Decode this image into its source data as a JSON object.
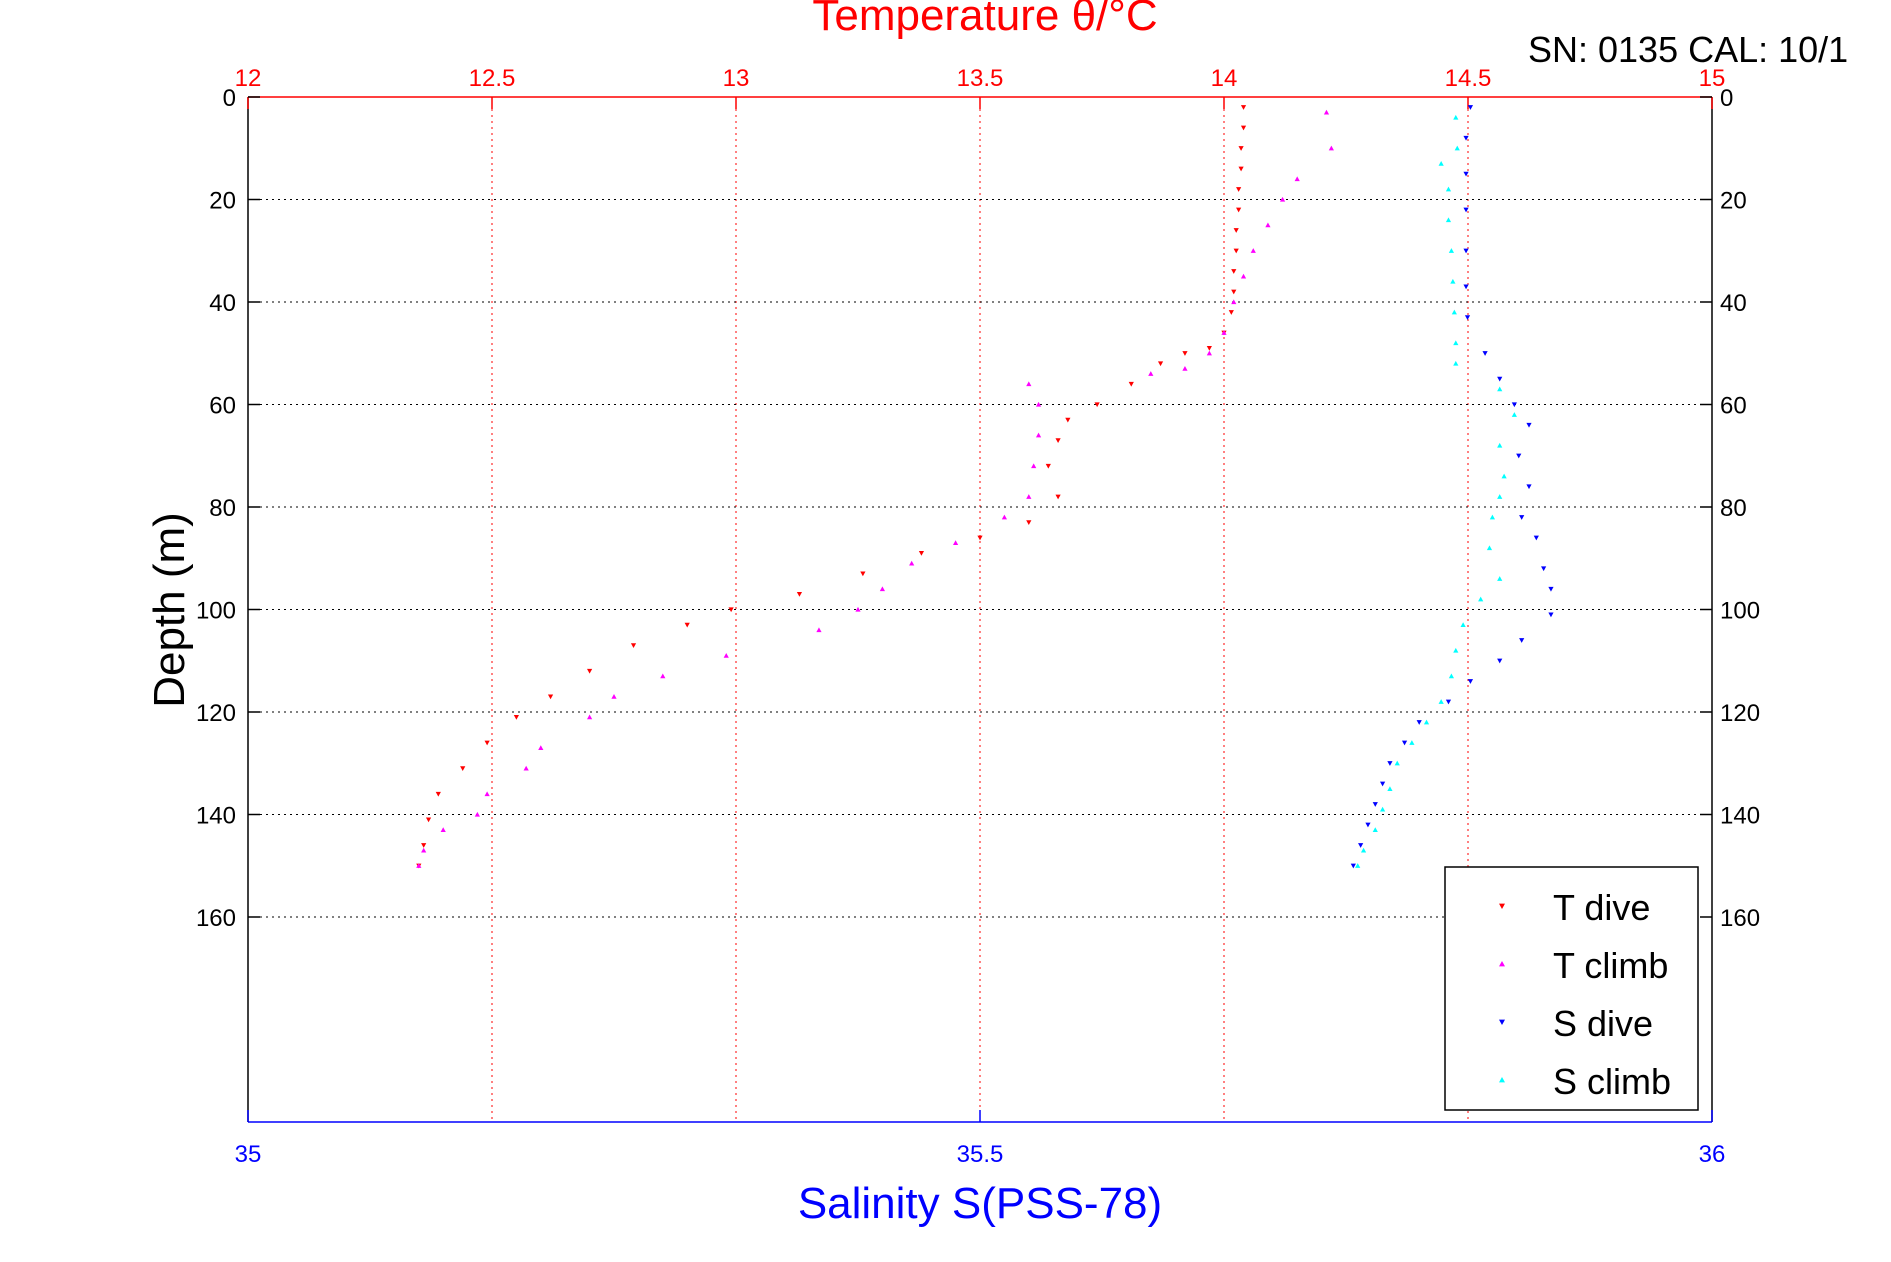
{
  "chart_data": {
    "type": "scatter",
    "title": "Temperature θ/°C",
    "annotation": "SN: 0135  CAL: 10/1",
    "xlabel": "Salinity S(PSS-78)",
    "ylabel": "Depth (m)",
    "x_top": {
      "label": "Temperature θ/°C",
      "range": [
        12,
        15
      ],
      "ticks": [
        "12",
        "12.5",
        "13",
        "13.5",
        "14",
        "14.5",
        "15"
      ],
      "color": "#ff0000"
    },
    "x_bottom": {
      "label": "Salinity S(PSS-78)",
      "range": [
        35,
        36
      ],
      "ticks": [
        "35",
        "35.5",
        "36"
      ],
      "color": "#0000ff"
    },
    "y": {
      "range": [
        0,
        200
      ],
      "reversed": true,
      "ticks": [
        "0",
        "20",
        "40",
        "60",
        "80",
        "100",
        "120",
        "140",
        "160"
      ]
    },
    "grid": true,
    "legend_position": "bottom-right",
    "series": [
      {
        "name": "T dive",
        "axis": "temperature",
        "color": "#ff0000",
        "marker": "triangle-down",
        "points": [
          [
            14.04,
            2
          ],
          [
            14.04,
            6
          ],
          [
            14.035,
            10
          ],
          [
            14.035,
            14
          ],
          [
            14.03,
            18
          ],
          [
            14.03,
            22
          ],
          [
            14.025,
            26
          ],
          [
            14.025,
            30
          ],
          [
            14.02,
            34
          ],
          [
            14.02,
            38
          ],
          [
            14.015,
            42
          ],
          [
            14.0,
            46
          ],
          [
            13.97,
            49
          ],
          [
            13.92,
            50
          ],
          [
            13.87,
            52
          ],
          [
            13.81,
            56
          ],
          [
            13.74,
            60
          ],
          [
            13.68,
            63
          ],
          [
            13.66,
            67
          ],
          [
            13.64,
            72
          ],
          [
            13.66,
            78
          ],
          [
            13.6,
            83
          ],
          [
            13.5,
            86
          ],
          [
            13.38,
            89
          ],
          [
            13.26,
            93
          ],
          [
            13.13,
            97
          ],
          [
            12.99,
            100
          ],
          [
            12.9,
            103
          ],
          [
            12.79,
            107
          ],
          [
            12.7,
            112
          ],
          [
            12.62,
            117
          ],
          [
            12.55,
            121
          ],
          [
            12.49,
            126
          ],
          [
            12.44,
            131
          ],
          [
            12.39,
            136
          ],
          [
            12.37,
            141
          ],
          [
            12.36,
            146
          ],
          [
            12.35,
            150
          ]
        ]
      },
      {
        "name": "T climb",
        "axis": "temperature",
        "color": "#ff00ff",
        "marker": "triangle-up",
        "points": [
          [
            14.21,
            3
          ],
          [
            14.22,
            10
          ],
          [
            14.15,
            16
          ],
          [
            14.12,
            20
          ],
          [
            14.09,
            25
          ],
          [
            14.06,
            30
          ],
          [
            14.04,
            35
          ],
          [
            14.02,
            40
          ],
          [
            14.0,
            46
          ],
          [
            13.97,
            50
          ],
          [
            13.92,
            53
          ],
          [
            13.85,
            54
          ],
          [
            13.6,
            56
          ],
          [
            13.62,
            60
          ],
          [
            13.62,
            66
          ],
          [
            13.61,
            72
          ],
          [
            13.6,
            78
          ],
          [
            13.55,
            82
          ],
          [
            13.45,
            87
          ],
          [
            13.36,
            91
          ],
          [
            13.3,
            96
          ],
          [
            13.25,
            100
          ],
          [
            13.17,
            104
          ],
          [
            12.98,
            109
          ],
          [
            12.85,
            113
          ],
          [
            12.75,
            117
          ],
          [
            12.7,
            121
          ],
          [
            12.6,
            127
          ],
          [
            12.57,
            131
          ],
          [
            12.49,
            136
          ],
          [
            12.47,
            140
          ],
          [
            12.4,
            143
          ],
          [
            12.36,
            147
          ],
          [
            12.35,
            150
          ]
        ]
      },
      {
        "name": "S dive",
        "axis": "salinity",
        "color": "#0000ff",
        "marker": "triangle-down",
        "points": [
          [
            35.835,
            2
          ],
          [
            35.832,
            8
          ],
          [
            35.832,
            15
          ],
          [
            35.832,
            22
          ],
          [
            35.832,
            30
          ],
          [
            35.832,
            37
          ],
          [
            35.833,
            43
          ],
          [
            35.845,
            50
          ],
          [
            35.855,
            55
          ],
          [
            35.865,
            60
          ],
          [
            35.875,
            64
          ],
          [
            35.868,
            70
          ],
          [
            35.875,
            76
          ],
          [
            35.87,
            82
          ],
          [
            35.88,
            86
          ],
          [
            35.885,
            92
          ],
          [
            35.89,
            96
          ],
          [
            35.89,
            101
          ],
          [
            35.87,
            106
          ],
          [
            35.855,
            110
          ],
          [
            35.835,
            114
          ],
          [
            35.82,
            118
          ],
          [
            35.8,
            122
          ],
          [
            35.79,
            126
          ],
          [
            35.78,
            130
          ],
          [
            35.775,
            134
          ],
          [
            35.77,
            138
          ],
          [
            35.765,
            142
          ],
          [
            35.76,
            146
          ],
          [
            35.755,
            150
          ]
        ]
      },
      {
        "name": "S climb",
        "axis": "salinity",
        "color": "#00ffff",
        "marker": "triangle-up",
        "points": [
          [
            35.825,
            4
          ],
          [
            35.826,
            10
          ],
          [
            35.815,
            13
          ],
          [
            35.82,
            18
          ],
          [
            35.82,
            24
          ],
          [
            35.822,
            30
          ],
          [
            35.823,
            36
          ],
          [
            35.824,
            42
          ],
          [
            35.825,
            48
          ],
          [
            35.825,
            52
          ],
          [
            35.855,
            57
          ],
          [
            35.865,
            62
          ],
          [
            35.855,
            68
          ],
          [
            35.858,
            74
          ],
          [
            35.855,
            78
          ],
          [
            35.85,
            82
          ],
          [
            35.848,
            88
          ],
          [
            35.855,
            94
          ],
          [
            35.842,
            98
          ],
          [
            35.83,
            103
          ],
          [
            35.825,
            108
          ],
          [
            35.822,
            113
          ],
          [
            35.815,
            118
          ],
          [
            35.805,
            122
          ],
          [
            35.795,
            126
          ],
          [
            35.785,
            130
          ],
          [
            35.78,
            135
          ],
          [
            35.775,
            139
          ],
          [
            35.77,
            143
          ],
          [
            35.762,
            147
          ],
          [
            35.758,
            150
          ]
        ]
      }
    ]
  }
}
